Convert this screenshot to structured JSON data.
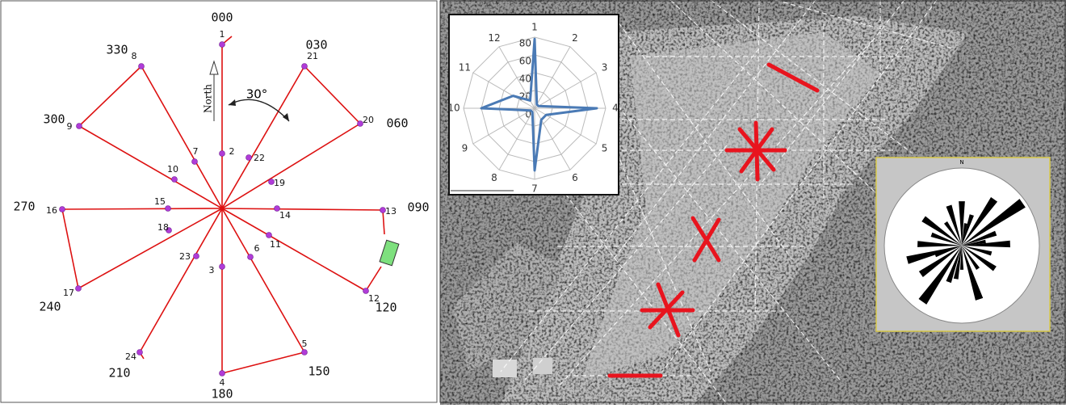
{
  "survey": {
    "north": "North",
    "angle": "30°",
    "points": [
      {
        "label": "1"
      },
      {
        "label": "2"
      },
      {
        "label": "3"
      },
      {
        "label": "4"
      },
      {
        "label": "5"
      },
      {
        "label": "6"
      },
      {
        "label": "7"
      },
      {
        "label": "8"
      },
      {
        "label": "9"
      },
      {
        "label": "10"
      },
      {
        "label": "11"
      },
      {
        "label": "12"
      },
      {
        "label": "13"
      },
      {
        "label": "14"
      },
      {
        "label": "15"
      },
      {
        "label": "16"
      },
      {
        "label": "17"
      },
      {
        "label": "18"
      },
      {
        "label": "19"
      },
      {
        "label": "20"
      },
      {
        "label": "21"
      },
      {
        "label": "22"
      },
      {
        "label": "23"
      },
      {
        "label": "24"
      }
    ],
    "bearings": [
      "000",
      "030",
      "060",
      "090",
      "120",
      "150",
      "180",
      "210",
      "240",
      "270",
      "300",
      "330"
    ]
  },
  "radar": {
    "type": "radar",
    "axes": [
      "1",
      "2",
      "3",
      "4",
      "5",
      "6",
      "7",
      "8",
      "9",
      "10",
      "11",
      "12"
    ],
    "values": [
      78,
      5,
      5,
      70,
      15,
      15,
      70,
      5,
      5,
      60,
      28,
      10
    ],
    "color": "#4a7ab5",
    "rlim": [
      0,
      80
    ],
    "ticks": [
      0,
      20,
      40,
      60,
      80
    ]
  },
  "rose": {
    "north": "N"
  }
}
